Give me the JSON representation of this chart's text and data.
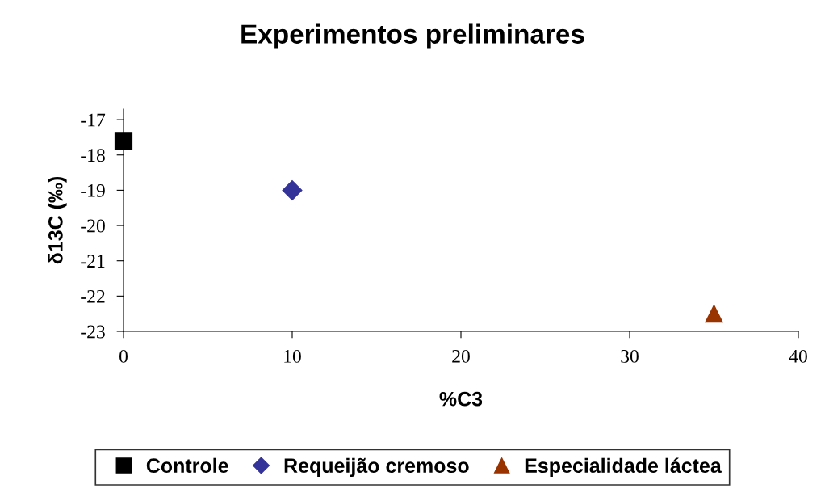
{
  "chart_data": {
    "type": "scatter",
    "title": "Experimentos preliminares",
    "xlabel": "%C3",
    "ylabel": "δ13C (‰)",
    "series": [
      {
        "name": "Controle",
        "color": "#000000",
        "marker": "square",
        "x": [
          0
        ],
        "values": [
          -17.6
        ]
      },
      {
        "name": "Requeijão cremoso",
        "color": "#333399",
        "marker": "diamond",
        "x": [
          10
        ],
        "values": [
          -19
        ]
      },
      {
        "name": "Especialidade láctea",
        "color": "#993300",
        "marker": "triangle",
        "x": [
          35
        ],
        "values": [
          -22.5
        ]
      }
    ],
    "xlim": [
      0,
      40
    ],
    "xticks": [
      0,
      10,
      20,
      30,
      40
    ],
    "ylim": [
      -23,
      -16.7
    ],
    "yticks": [
      -23,
      -22,
      -21,
      -20,
      -19,
      -18,
      -17
    ],
    "grid": false,
    "legend": "bottom"
  }
}
